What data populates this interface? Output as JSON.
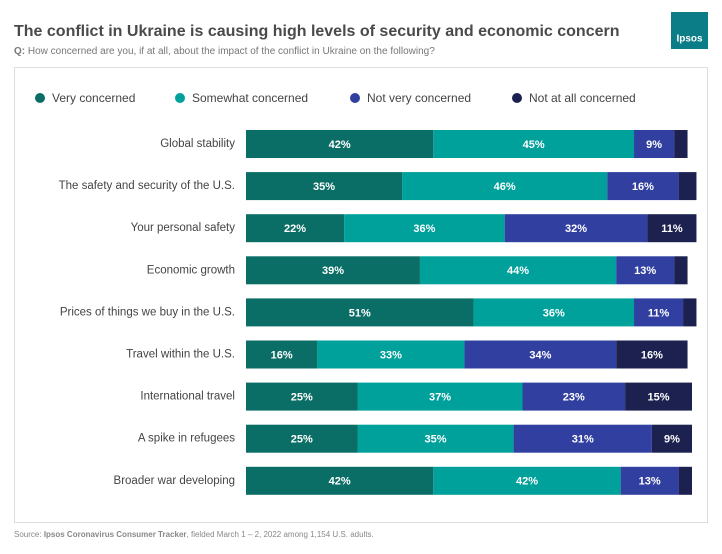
{
  "chart_data": {
    "type": "stacked-bar",
    "title": "The conflict in Ukraine is causing high levels of security and economic concern",
    "subtitle_label": "Q:",
    "subtitle": "How concerned are you, if at all, about the impact of the conflict in Ukraine on the following?",
    "logo": "Ipsos",
    "source_label": "Source:",
    "source_name": "Ipsos Coronavirus Consumer Tracker",
    "source_text": ", fielded March 1 – 2, 2022 among 1,154 U.S. adults.",
    "categories": [
      "Global stability",
      "The safety and security of the U.S.",
      "Your personal safety",
      "Economic growth",
      "Prices of things we buy in the U.S.",
      "Travel within the U.S.",
      "International travel",
      "A spike in refugees",
      "Broader war developing"
    ],
    "xlim": [
      0,
      100
    ],
    "series": [
      {
        "name": "Very concerned",
        "color": "#0b6e66",
        "values": [
          42,
          35,
          22,
          39,
          51,
          16,
          25,
          25,
          42
        ],
        "value_labels": [
          "42%",
          "35%",
          "22%",
          "39%",
          "51%",
          "16%",
          "25%",
          "25%",
          "42%"
        ]
      },
      {
        "name": "Somewhat concerned",
        "color": "#00a09b",
        "values": [
          45,
          46,
          36,
          44,
          36,
          33,
          37,
          35,
          42
        ],
        "value_labels": [
          "45%",
          "46%",
          "36%",
          "44%",
          "36%",
          "33%",
          "37%",
          "35%",
          "42%"
        ]
      },
      {
        "name": "Not very concerned",
        "color": "#3140a0",
        "values": [
          9,
          16,
          32,
          13,
          11,
          34,
          23,
          31,
          13
        ],
        "value_labels": [
          "9%",
          "16%",
          "32%",
          "13%",
          "11%",
          "34%",
          "23%",
          "31%",
          "13%"
        ]
      },
      {
        "name": "Not at all concerned",
        "color": "#1c2150",
        "values": [
          3,
          4,
          11,
          3,
          3,
          16,
          15,
          9,
          3
        ],
        "value_labels": [
          null,
          null,
          "11%",
          null,
          null,
          "16%",
          "15%",
          "9%",
          null
        ]
      }
    ]
  }
}
